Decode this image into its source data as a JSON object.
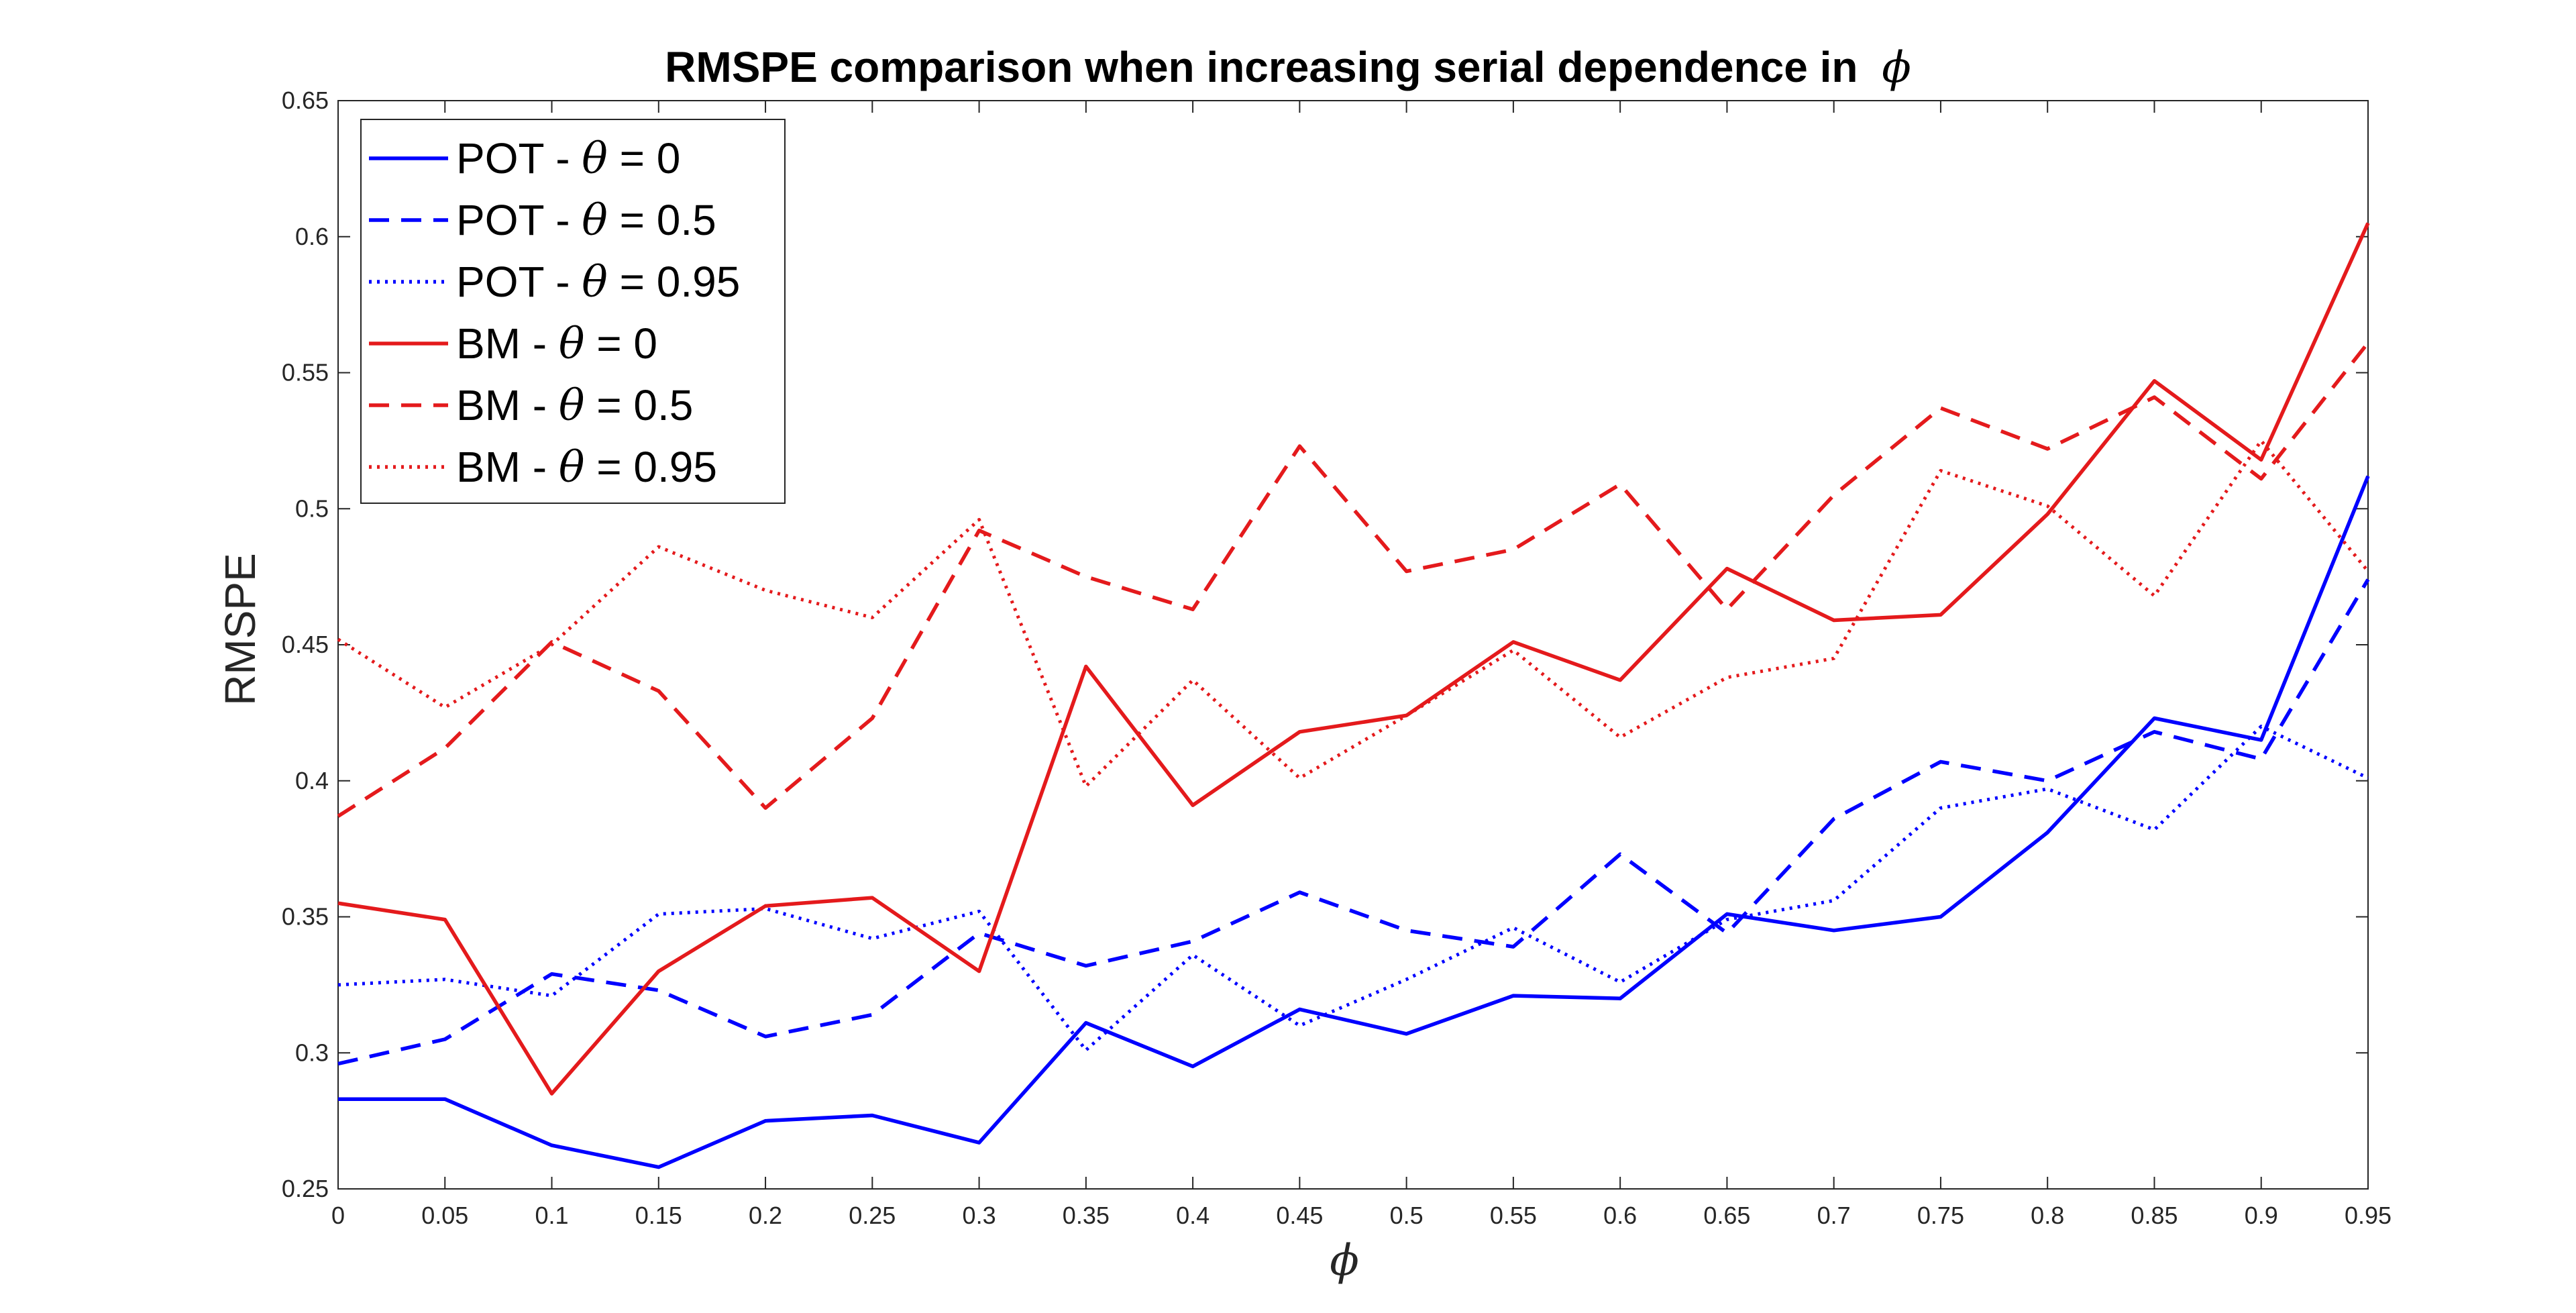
{
  "chart_data": {
    "type": "line",
    "title": "RMSPE comparison when increasing serial dependence in",
    "title_symbol": "ϕ",
    "xlabel": "ϕ",
    "ylabel": "RMSPE",
    "xlim": [
      0,
      0.95
    ],
    "ylim": [
      0.25,
      0.65
    ],
    "grid": false,
    "legend_position": "top-left",
    "x": [
      0,
      0.05,
      0.1,
      0.15,
      0.2,
      0.25,
      0.3,
      0.35,
      0.4,
      0.45,
      0.5,
      0.55,
      0.6,
      0.65,
      0.7,
      0.75,
      0.8,
      0.85,
      0.9,
      0.95
    ],
    "x_tick_labels": [
      "0",
      "0.05",
      "0.1",
      "0.15",
      "0.2",
      "0.25",
      "0.3",
      "0.35",
      "0.4",
      "0.45",
      "0.5",
      "0.55",
      "0.6",
      "0.65",
      "0.7",
      "0.75",
      "0.8",
      "0.85",
      "0.9",
      "0.95"
    ],
    "y_ticks": [
      0.25,
      0.3,
      0.35,
      0.4,
      0.45,
      0.5,
      0.55,
      0.6,
      0.65
    ],
    "y_tick_labels": [
      "0.25",
      "0.3",
      "0.35",
      "0.4",
      "0.45",
      "0.5",
      "0.55",
      "0.6",
      "0.65"
    ],
    "series": [
      {
        "name": "POT - θ = 0",
        "legend_prefix": "POT - ",
        "legend_symbol": "θ",
        "legend_suffix": " = 0",
        "color": "#0000ff",
        "style": "solid",
        "values": [
          0.283,
          0.283,
          0.266,
          0.258,
          0.275,
          0.277,
          0.267,
          0.311,
          0.295,
          0.316,
          0.307,
          0.321,
          0.32,
          0.351,
          0.345,
          0.35,
          0.381,
          0.423,
          0.415,
          0.512
        ]
      },
      {
        "name": "POT - θ = 0.5",
        "legend_prefix": "POT - ",
        "legend_symbol": "θ",
        "legend_suffix": " = 0.5",
        "color": "#0000ff",
        "style": "dashed",
        "values": [
          0.296,
          0.305,
          0.329,
          0.323,
          0.306,
          0.314,
          0.344,
          0.332,
          0.341,
          0.359,
          0.345,
          0.339,
          0.373,
          0.344,
          0.386,
          0.407,
          0.4,
          0.418,
          0.408,
          0.474
        ]
      },
      {
        "name": "POT - θ = 0.95",
        "legend_prefix": "POT - ",
        "legend_symbol": "θ",
        "legend_suffix": " = 0.95",
        "color": "#0000ff",
        "style": "dotted",
        "values": [
          0.325,
          0.327,
          0.321,
          0.351,
          0.353,
          0.342,
          0.352,
          0.301,
          0.336,
          0.31,
          0.327,
          0.346,
          0.326,
          0.349,
          0.356,
          0.39,
          0.397,
          0.382,
          0.42,
          0.401
        ]
      },
      {
        "name": "BM - θ = 0",
        "legend_prefix": "BM - ",
        "legend_symbol": "θ",
        "legend_suffix": " = 0",
        "color": "#e41a1c",
        "style": "solid",
        "values": [
          0.355,
          0.349,
          0.285,
          0.33,
          0.354,
          0.357,
          0.33,
          0.442,
          0.391,
          0.418,
          0.424,
          0.451,
          0.437,
          0.478,
          0.459,
          0.461,
          0.498,
          0.547,
          0.518,
          0.605
        ]
      },
      {
        "name": "BM - θ = 0.5",
        "legend_prefix": "BM - ",
        "legend_symbol": "θ",
        "legend_suffix": " = 0.5",
        "color": "#e41a1c",
        "style": "dashed",
        "values": [
          0.387,
          0.412,
          0.451,
          0.433,
          0.39,
          0.423,
          0.492,
          0.475,
          0.463,
          0.523,
          0.477,
          0.485,
          0.509,
          0.463,
          0.505,
          0.537,
          0.522,
          0.541,
          0.511,
          0.561
        ]
      },
      {
        "name": "BM - θ = 0.95",
        "legend_prefix": "BM - ",
        "legend_symbol": "θ",
        "legend_suffix": " = 0.95",
        "color": "#e41a1c",
        "style": "dotted",
        "values": [
          0.452,
          0.427,
          0.45,
          0.486,
          0.47,
          0.46,
          0.496,
          0.398,
          0.437,
          0.401,
          0.424,
          0.448,
          0.416,
          0.438,
          0.445,
          0.514,
          0.501,
          0.468,
          0.525,
          0.477
        ]
      }
    ]
  }
}
